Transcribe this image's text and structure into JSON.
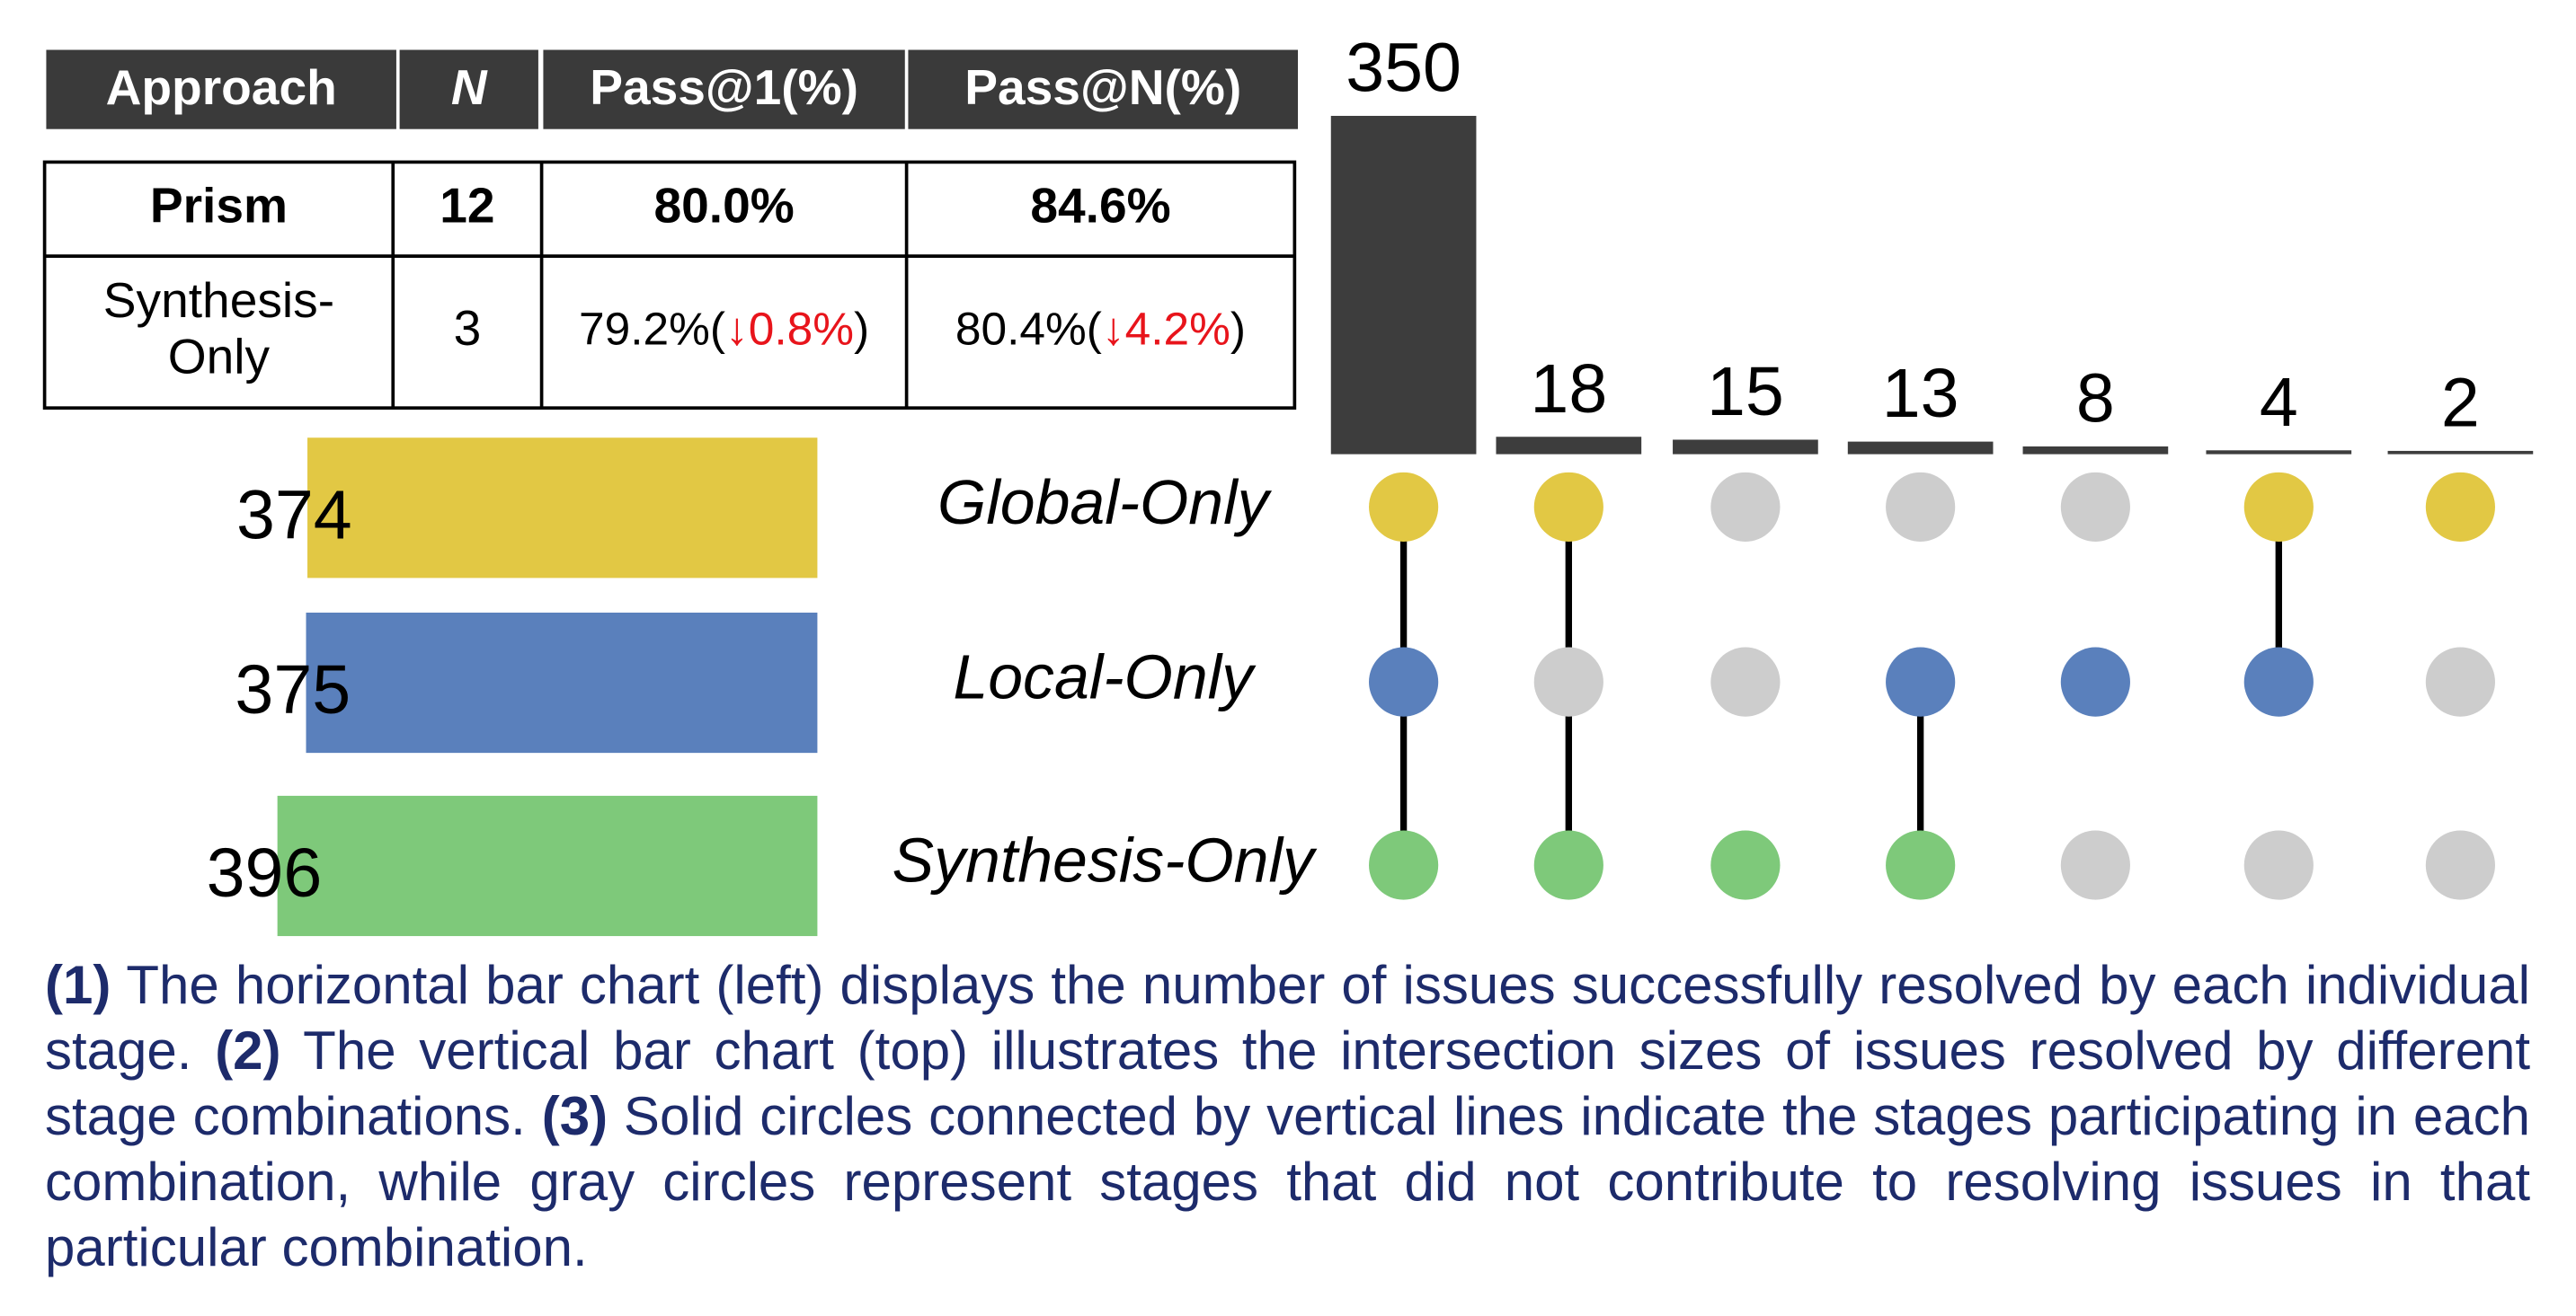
{
  "table": {
    "header": [
      "Approach",
      "N",
      "Pass@1(%)",
      "Pass@N(%)"
    ],
    "rows": [
      [
        "Prism",
        12,
        "80.0%",
        "84.6%"
      ],
      [
        [
          "Synthesis-",
          "Only"
        ],
        3,
        [
          "79.2%(",
          "↓0.8%",
          ")"
        ],
        [
          "80.4%(",
          "↓4.2%",
          ")"
        ]
      ]
    ],
    "bold_rows": [
      0
    ],
    "delta_color": "#e8141b"
  },
  "chart_data": [
    {
      "type": "hbar",
      "categories": [
        "Global-Only",
        "Local-Only",
        "Synthesis-Only"
      ],
      "values": [
        374,
        375,
        396
      ],
      "colors": [
        "#e2c844",
        "#5a80bc",
        "#7ec97a"
      ]
    },
    {
      "type": "upset",
      "values": [
        350,
        18,
        15,
        13,
        8,
        4,
        2
      ],
      "color": "#3d3d3d",
      "sets": [
        [
          0,
          1,
          2
        ],
        [
          0,
          2
        ],
        [
          2
        ],
        [
          1,
          2
        ],
        [
          1
        ],
        [
          0,
          1
        ],
        [
          0
        ]
      ],
      "inactive_color": "#cdcdcd"
    }
  ],
  "caption": [
    {
      "text": "(1)",
      "bold": true
    },
    {
      "text": " The horizontal bar chart (left) displays the number of issues successfully resolved by each individual stage. "
    },
    {
      "text": "(2)",
      "bold": true
    },
    {
      "text": " The vertical bar chart (top) illustrates the intersection sizes of issues resolved by different stage combinations. "
    },
    {
      "text": "(3)",
      "bold": true
    },
    {
      "text": " Solid circles connected by vertical lines indicate the stages participating in each combination, while gray circles represent stages that did not contribute to resolving issues in that particular combination."
    }
  ]
}
